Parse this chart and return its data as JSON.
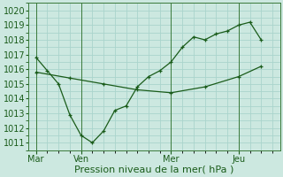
{
  "bg_color": "#cce8e0",
  "grid_color": "#aad4cc",
  "line_color": "#1a5c1a",
  "xlabel": "Pression niveau de la mer( hPa )",
  "ylim": [
    1010.5,
    1020.5
  ],
  "yticks": [
    1011,
    1012,
    1013,
    1014,
    1015,
    1016,
    1017,
    1018,
    1019,
    1020
  ],
  "day_labels": [
    "Mar",
    "Ven",
    "Mer",
    "Jeu"
  ],
  "day_positions": [
    0,
    24,
    72,
    108
  ],
  "xlim": [
    -4,
    130
  ],
  "series1_x": [
    0,
    6,
    12,
    18,
    24,
    30,
    36,
    42,
    48,
    54,
    60,
    66,
    72,
    78,
    84,
    90,
    96,
    102,
    108,
    114,
    120
  ],
  "series1_y": [
    1016.8,
    1015.9,
    1015.0,
    1012.9,
    1011.5,
    1011.0,
    1011.8,
    1013.2,
    1013.5,
    1014.8,
    1015.5,
    1015.9,
    1016.5,
    1017.5,
    1018.2,
    1018.0,
    1018.4,
    1018.6,
    1019.0,
    1019.2,
    1018.0
  ],
  "series2_x": [
    0,
    18,
    36,
    54,
    72,
    90,
    108,
    120
  ],
  "series2_y": [
    1015.8,
    1015.4,
    1015.0,
    1014.6,
    1014.4,
    1014.8,
    1015.5,
    1016.2
  ],
  "vline_color": "#3a7a3a",
  "fontsize_label": 8,
  "fontsize_tick": 7
}
